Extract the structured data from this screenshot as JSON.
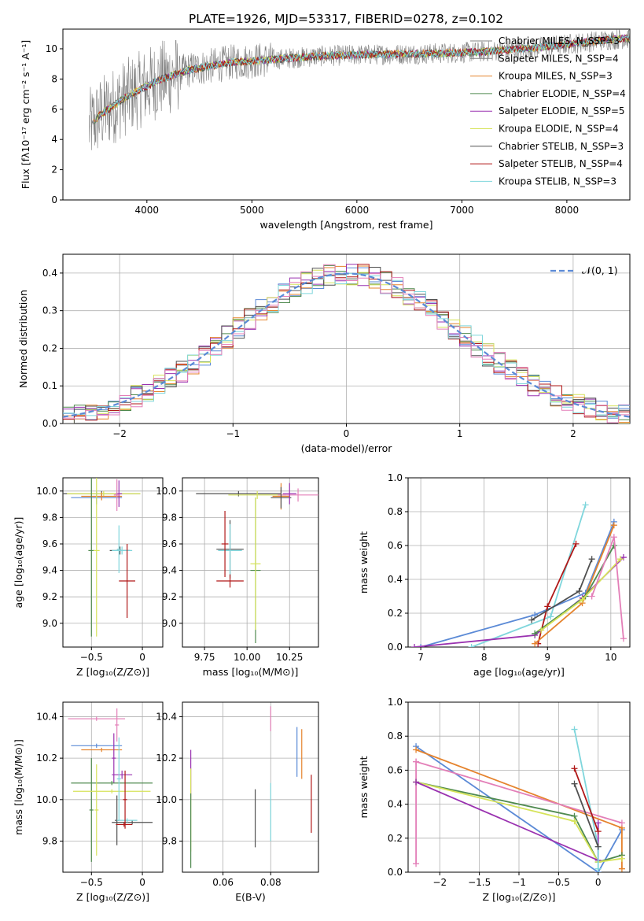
{
  "figure": {
    "title": "PLATE=1926, MJD=53317, FIBERID=0278, z=0.102"
  },
  "chart_data": [
    {
      "id": "spectrum",
      "type": "line",
      "xlabel": "wavelength [Angstrom, rest frame]",
      "ylabel": "Flux [fλ10⁻¹⁷ erg cm⁻² s⁻¹ A⁻¹]",
      "xlim": [
        3200,
        8600
      ],
      "ylim": [
        0,
        11.3
      ],
      "xticks": [
        4000,
        5000,
        6000,
        7000,
        8000
      ],
      "yticks": [
        0,
        2,
        4,
        6,
        8,
        10
      ],
      "grid": false,
      "legend_position": "right",
      "data_line": {
        "color": "#808080",
        "note": "observed spectrum (noisy gray)"
      },
      "series": [
        {
          "name": "Chabrier MILES, N_SSP=3",
          "color": "#808080"
        },
        {
          "name": "Salpeter MILES, N_SSP=4",
          "color": "#808080"
        },
        {
          "name": "Kroupa MILES, N_SSP=3",
          "color": "#e5832d"
        },
        {
          "name": "Chabrier ELODIE, N_SSP=4",
          "color": "#4f8a4f"
        },
        {
          "name": "Salpeter ELODIE, N_SSP=5",
          "color": "#9a32b0"
        },
        {
          "name": "Kroupa ELODIE, N_SSP=4",
          "color": "#d6e35a"
        },
        {
          "name": "Chabrier STELIB, N_SSP=3",
          "color": "#505050"
        },
        {
          "name": "Salpeter STELIB, N_SSP=4",
          "color": "#b01818"
        },
        {
          "name": "Kroupa STELIB, N_SSP=3",
          "color": "#7fd6dc"
        }
      ],
      "model_shape": {
        "x": [
          3450,
          3550,
          3800,
          4100,
          4400,
          4800,
          5200,
          5600,
          6000,
          6400,
          6800,
          7200,
          7600,
          8000,
          8400,
          8600
        ],
        "y": [
          4.8,
          5.6,
          6.8,
          7.9,
          8.6,
          9.1,
          9.3,
          9.5,
          9.6,
          9.65,
          9.7,
          9.8,
          10.0,
          10.3,
          10.6,
          10.7
        ]
      }
    },
    {
      "id": "residuals",
      "type": "histogram",
      "xlabel": "(data-model)/error",
      "ylabel": "Normed distribution",
      "xlim": [
        -2.5,
        2.5
      ],
      "ylim": [
        0,
        0.45
      ],
      "xticks": [
        -2,
        -1,
        0,
        1,
        2
      ],
      "yticks": [
        0.0,
        0.1,
        0.2,
        0.3,
        0.4
      ],
      "grid": true,
      "legend": {
        "label": "𝒩(0, 1)",
        "position": "top-right",
        "color": "#5b8ad6",
        "style": "dashed"
      },
      "bin_width": 0.1,
      "approx_profile": "gaussian mean 0 sigma 1 (histograms scattered around N(0,1))",
      "series_colors": [
        "#5b8ad6",
        "#e5832d",
        "#4f8a4f",
        "#9a32b0",
        "#d6e35a",
        "#505050",
        "#b01818",
        "#7fd6dc",
        "#e37fb8"
      ]
    },
    {
      "id": "Z_age",
      "type": "errorbar",
      "xlabel": "Z [log₁₀(Z/Z⊙)]",
      "ylabel": "age  [log₁₀(age/yr)]",
      "xlim": [
        -0.78,
        0.2
      ],
      "ylim": [
        8.82,
        10.1
      ],
      "xticks": [
        -0.5,
        0.0
      ],
      "yticks": [
        9.0,
        9.2,
        9.4,
        9.6,
        9.8,
        10.0
      ],
      "grid": true,
      "points": [
        {
          "x": -0.4,
          "y": 9.98,
          "xerr": 0.38,
          "yerr": 0.02,
          "color": "#505050"
        },
        {
          "x": -0.38,
          "y": 9.98,
          "xerr": 0.36,
          "yerr": 0.02,
          "color": "#d6e35a"
        },
        {
          "x": -0.45,
          "y": 9.95,
          "xerr": 0.25,
          "yerr": 0.05,
          "color": "#5b8ad6"
        },
        {
          "x": -0.4,
          "y": 9.96,
          "xerr": 0.2,
          "yerr": 0.03,
          "color": "#e5832d"
        },
        {
          "x": -0.5,
          "y": 9.55,
          "xerr": 0.03,
          "yerr": 0.65,
          "color": "#4f8a4f"
        },
        {
          "x": -0.45,
          "y": 9.55,
          "xerr": 0.03,
          "yerr": 0.65,
          "color": "#d6e35a"
        },
        {
          "x": -0.23,
          "y": 9.98,
          "xerr": 0.03,
          "yerr": 0.1,
          "color": "#9a32b0"
        },
        {
          "x": -0.25,
          "y": 9.97,
          "xerr": 0.03,
          "yerr": 0.12,
          "color": "#e37fb8"
        },
        {
          "x": -0.22,
          "y": 9.55,
          "xerr": 0.1,
          "yerr": 0.03,
          "color": "#505050"
        },
        {
          "x": -0.2,
          "y": 9.55,
          "xerr": 0.1,
          "yerr": 0.03,
          "color": "#7fd6dc"
        },
        {
          "x": -0.23,
          "y": 9.56,
          "xerr": 0.02,
          "yerr": 0.18,
          "color": "#7fd6dc"
        },
        {
          "x": -0.15,
          "y": 9.32,
          "xerr": 0.08,
          "yerr": 0.28,
          "color": "#b01818"
        }
      ]
    },
    {
      "id": "mass_age",
      "type": "errorbar",
      "xlabel": "mass [log₁₀(M/M⊙)]",
      "ylabel": "",
      "xlim": [
        9.62,
        10.42
      ],
      "ylim": [
        8.82,
        10.1
      ],
      "xticks": [
        9.75,
        10.0,
        10.25
      ],
      "xtick_labels": [
        "9.75",
        "10.00",
        "10.25"
      ],
      "yticks": [
        9.0,
        9.2,
        9.4,
        9.6,
        9.8,
        10.0
      ],
      "grid": true,
      "points": [
        {
          "x": 9.95,
          "y": 9.98,
          "xerr": 0.25,
          "yerr": 0.02,
          "color": "#505050"
        },
        {
          "x": 10.06,
          "y": 9.97,
          "xerr": 0.17,
          "yerr": 0.03,
          "color": "#d6e35a"
        },
        {
          "x": 10.3,
          "y": 9.97,
          "xerr": 0.12,
          "yerr": 0.05,
          "color": "#e37fb8"
        },
        {
          "x": 10.2,
          "y": 9.96,
          "xerr": 0.05,
          "yerr": 0.1,
          "color": "#e5832d"
        },
        {
          "x": 10.2,
          "y": 9.95,
          "xerr": 0.06,
          "yerr": 0.08,
          "color": "#505050"
        },
        {
          "x": 10.25,
          "y": 9.98,
          "xerr": 0.04,
          "yerr": 0.08,
          "color": "#9a32b0"
        },
        {
          "x": 10.05,
          "y": 9.4,
          "xerr": 0.03,
          "yerr": 0.55,
          "color": "#4f8a4f"
        },
        {
          "x": 10.05,
          "y": 9.45,
          "xerr": 0.03,
          "yerr": 0.5,
          "color": "#d6e35a"
        },
        {
          "x": 9.9,
          "y": 9.56,
          "xerr": 0.08,
          "yerr": 0.22,
          "color": "#505050"
        },
        {
          "x": 9.9,
          "y": 9.55,
          "xerr": 0.07,
          "yerr": 0.2,
          "color": "#7fd6dc"
        },
        {
          "x": 9.9,
          "y": 9.32,
          "xerr": 0.08,
          "yerr": 0.05,
          "color": "#b01818"
        },
        {
          "x": 9.87,
          "y": 9.6,
          "xerr": 0.02,
          "yerr": 0.25,
          "color": "#b01818"
        }
      ]
    },
    {
      "id": "age_weight",
      "type": "line",
      "xlabel": "age  [log₁₀(age/yr)]",
      "ylabel": "mass weight",
      "xlim": [
        6.8,
        10.3
      ],
      "ylim": [
        0,
        1.0
      ],
      "xticks": [
        7,
        8,
        9,
        10
      ],
      "yticks": [
        0.0,
        0.2,
        0.4,
        0.6,
        0.8,
        1.0
      ],
      "grid": true,
      "series": [
        {
          "color": "#5b8ad6",
          "x": [
            7.0,
            8.8,
            9.6,
            10.05
          ],
          "y": [
            0.0,
            0.19,
            0.32,
            0.74
          ]
        },
        {
          "color": "#7fd6dc",
          "x": [
            7.8,
            9.05,
            9.6
          ],
          "y": [
            0.0,
            0.18,
            0.84
          ]
        },
        {
          "color": "#b01818",
          "x": [
            8.85,
            9.0,
            9.45
          ],
          "y": [
            0.02,
            0.24,
            0.61
          ]
        },
        {
          "color": "#505050",
          "x": [
            8.75,
            9.5,
            9.7
          ],
          "y": [
            0.16,
            0.33,
            0.52
          ]
        },
        {
          "color": "#9a32b0",
          "x": [
            6.9,
            8.8,
            9.55,
            10.2
          ],
          "y": [
            0.0,
            0.07,
            0.29,
            0.53
          ]
        },
        {
          "color": "#e5832d",
          "x": [
            8.8,
            9.55,
            10.05
          ],
          "y": [
            0.02,
            0.26,
            0.72
          ]
        },
        {
          "color": "#4f8a4f",
          "x": [
            8.8,
            9.6,
            10.05
          ],
          "y": [
            0.08,
            0.3,
            0.6
          ]
        },
        {
          "color": "#d6e35a",
          "x": [
            8.9,
            9.55,
            10.15
          ],
          "y": [
            0.1,
            0.28,
            0.52
          ]
        },
        {
          "color": "#e37fb8",
          "x": [
            9.7,
            10.05,
            10.2
          ],
          "y": [
            0.3,
            0.65,
            0.05
          ]
        }
      ]
    },
    {
      "id": "Z_mass",
      "type": "errorbar",
      "xlabel": "Z [log₁₀(Z/Z⊙)]",
      "ylabel": "mass [log₁₀(M/M⊙)]",
      "xlim": [
        -0.78,
        0.2
      ],
      "ylim": [
        9.65,
        10.47
      ],
      "xticks": [
        -0.5,
        0.0
      ],
      "yticks": [
        9.8,
        10.0,
        10.2,
        10.4
      ],
      "grid": true,
      "points": [
        {
          "x": -0.45,
          "y": 10.39,
          "xerr": 0.28,
          "yerr": 0.01,
          "color": "#e37fb8"
        },
        {
          "x": -0.25,
          "y": 10.36,
          "xerr": 0.02,
          "yerr": 0.08,
          "color": "#e37fb8"
        },
        {
          "x": -0.45,
          "y": 10.26,
          "xerr": 0.25,
          "yerr": 0.01,
          "color": "#5b8ad6"
        },
        {
          "x": -0.4,
          "y": 10.24,
          "xerr": 0.2,
          "yerr": 0.01,
          "color": "#e5832d"
        },
        {
          "x": -0.28,
          "y": 10.2,
          "xerr": 0.02,
          "yerr": 0.12,
          "color": "#9a32b0"
        },
        {
          "x": -0.2,
          "y": 10.12,
          "xerr": 0.1,
          "yerr": 0.02,
          "color": "#9a32b0"
        },
        {
          "x": -0.3,
          "y": 10.08,
          "xerr": 0.4,
          "yerr": 0.01,
          "color": "#4f8a4f"
        },
        {
          "x": -0.5,
          "y": 9.95,
          "xerr": 0.02,
          "yerr": 0.25,
          "color": "#4f8a4f"
        },
        {
          "x": -0.3,
          "y": 10.04,
          "xerr": 0.38,
          "yerr": 0.01,
          "color": "#d6e35a"
        },
        {
          "x": -0.45,
          "y": 9.95,
          "xerr": 0.02,
          "yerr": 0.22,
          "color": "#d6e35a"
        },
        {
          "x": -0.1,
          "y": 9.89,
          "xerr": 0.2,
          "yerr": 0.01,
          "color": "#505050"
        },
        {
          "x": -0.25,
          "y": 9.9,
          "xerr": 0.02,
          "yerr": 0.12,
          "color": "#505050"
        },
        {
          "x": -0.15,
          "y": 9.9,
          "xerr": 0.1,
          "yerr": 0.01,
          "color": "#7fd6dc"
        },
        {
          "x": -0.23,
          "y": 10.1,
          "xerr": 0.02,
          "yerr": 0.2,
          "color": "#7fd6dc"
        },
        {
          "x": -0.18,
          "y": 9.88,
          "xerr": 0.08,
          "yerr": 0.01,
          "color": "#b01818"
        },
        {
          "x": -0.17,
          "y": 10.0,
          "xerr": 0.02,
          "yerr": 0.14,
          "color": "#b01818"
        }
      ]
    },
    {
      "id": "ebv_mass",
      "type": "errorbar",
      "xlabel": "E(B-V)",
      "ylabel": "",
      "xlim": [
        0.043,
        0.1
      ],
      "ylim": [
        9.65,
        10.47
      ],
      "xticks": [
        0.06,
        0.08
      ],
      "xtick_labels": [
        "0.06",
        "0.08"
      ],
      "yticks": [
        9.8,
        10.0,
        10.2,
        10.4
      ],
      "grid": true,
      "points": [
        {
          "x": 0.0465,
          "y": 10.12,
          "yerr": 0.12,
          "color": "#9a32b0"
        },
        {
          "x": 0.0465,
          "y": 9.95,
          "yerr": 0.2,
          "color": "#d6e35a"
        },
        {
          "x": 0.0465,
          "y": 9.85,
          "yerr": 0.18,
          "color": "#4f8a4f"
        },
        {
          "x": 0.0735,
          "y": 9.91,
          "yerr": 0.14,
          "color": "#505050"
        },
        {
          "x": 0.08,
          "y": 10.39,
          "yerr": 0.06,
          "color": "#e37fb8"
        },
        {
          "x": 0.08,
          "y": 9.94,
          "yerr": 0.14,
          "color": "#7fd6dc"
        },
        {
          "x": 0.091,
          "y": 10.23,
          "yerr": 0.12,
          "color": "#5b8ad6"
        },
        {
          "x": 0.093,
          "y": 10.22,
          "yerr": 0.12,
          "color": "#e5832d"
        },
        {
          "x": 0.097,
          "y": 9.98,
          "yerr": 0.14,
          "color": "#b01818"
        }
      ]
    },
    {
      "id": "Z_weight",
      "type": "line",
      "xlabel": "Z [log₁₀(Z/Z⊙)]",
      "ylabel": "mass weight",
      "xlim": [
        -2.4,
        0.4
      ],
      "ylim": [
        0,
        1.0
      ],
      "xticks": [
        -2.0,
        -1.5,
        -1.0,
        -0.5,
        0.0
      ],
      "yticks": [
        0.0,
        0.2,
        0.4,
        0.6,
        0.8,
        1.0
      ],
      "grid": true,
      "series": [
        {
          "color": "#5b8ad6",
          "x": [
            -2.3,
            0.0,
            0.3
          ],
          "y": [
            0.74,
            0.0,
            0.25
          ]
        },
        {
          "color": "#e5832d",
          "x": [
            -2.3,
            0.3,
            0.3
          ],
          "y": [
            0.72,
            0.26,
            0.02
          ]
        },
        {
          "color": "#e37fb8",
          "x": [
            -2.3,
            0.3
          ],
          "y": [
            0.65,
            0.29
          ]
        },
        {
          "color": "#e37fb8",
          "x": [
            -2.3,
            -2.3
          ],
          "y": [
            0.05,
            0.65
          ]
        },
        {
          "color": "#4f8a4f",
          "x": [
            -2.3,
            -0.3,
            0.0,
            0.3
          ],
          "y": [
            0.53,
            0.33,
            0.06,
            0.1
          ]
        },
        {
          "color": "#d6e35a",
          "x": [
            -2.3,
            -0.3,
            0.0,
            0.3
          ],
          "y": [
            0.53,
            0.3,
            0.06,
            0.08
          ]
        },
        {
          "color": "#9a32b0",
          "x": [
            -2.3,
            0.0,
            0.0
          ],
          "y": [
            0.53,
            0.07,
            0.29
          ]
        },
        {
          "color": "#7fd6dc",
          "x": [
            -0.3,
            0.0,
            0.0
          ],
          "y": [
            0.84,
            0.15,
            0.02
          ]
        },
        {
          "color": "#b01818",
          "x": [
            -0.3,
            0.0
          ],
          "y": [
            0.61,
            0.24
          ]
        },
        {
          "color": "#505050",
          "x": [
            -0.3,
            0.0
          ],
          "y": [
            0.52,
            0.15
          ]
        }
      ]
    }
  ]
}
